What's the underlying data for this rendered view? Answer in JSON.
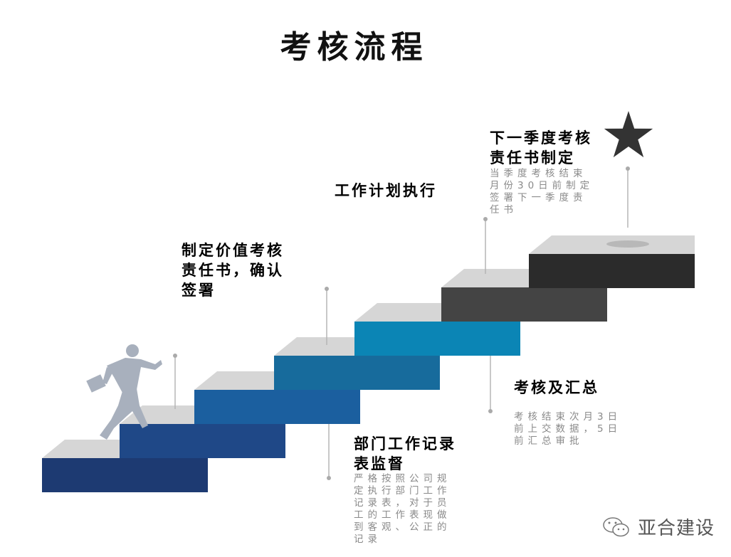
{
  "title": "考核流程",
  "steps": [
    {
      "heading": "制定价值考核责任书，确认签署",
      "heading_lines": [
        "制定价值考核",
        "责任书，确认",
        "签署"
      ]
    },
    {
      "heading_lines": [
        "部门工作记录",
        "表监督"
      ],
      "desc_lines": [
        "严格按照公司规",
        "定执行部门工作",
        "记录表，对于员",
        "工的工作表现做",
        "到客观、公正的",
        "记录"
      ]
    },
    {
      "heading_lines": [
        "工作计划执行"
      ]
    },
    {
      "heading_lines": [
        "考核及汇总"
      ],
      "desc_lines": [
        "考核结束次月3日",
        "前上交数据，5日",
        "前汇总审批"
      ]
    },
    {
      "heading_lines": [
        "下一季度考核",
        "责任书制定"
      ],
      "desc_lines": [
        "当季度考核结束",
        "月份30日前制定",
        "签署下一季度责",
        "任书"
      ]
    }
  ],
  "stair_colors": [
    "#1d3a72",
    "#1f4887",
    "#1b5f9f",
    "#176b9c",
    "#0b85b5",
    "#444444",
    "#2b2b2b"
  ],
  "top_face_color": "#d6d6d6",
  "icons": {
    "goal": "star-icon",
    "runner": "businessman-running-icon",
    "brand": "wechat-icon"
  },
  "brand": "亚合建设"
}
